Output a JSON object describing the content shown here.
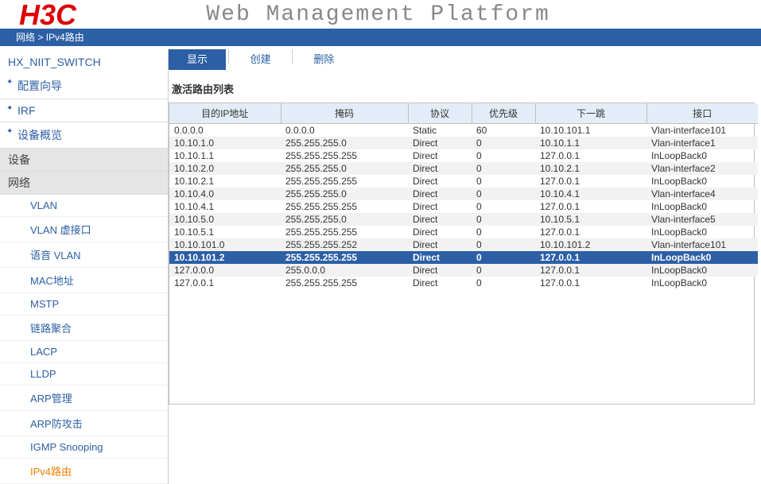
{
  "header": {
    "logo": "H3C",
    "title": "Web Management Platform"
  },
  "breadcrumb": {
    "level1": "网络",
    "sep": ">",
    "level2": "IPv4路由"
  },
  "sidebar": {
    "device_name": "HX_NIIT_SWITCH",
    "top_items": [
      {
        "label": "配置向导"
      },
      {
        "label": "IRF"
      },
      {
        "label": "设备概览"
      }
    ],
    "cat_device": "设备",
    "cat_network": "网络",
    "network_items": [
      {
        "label": "VLAN",
        "active": false
      },
      {
        "label": "VLAN 虚接口",
        "active": false
      },
      {
        "label": "语音 VLAN",
        "active": false
      },
      {
        "label": "MAC地址",
        "active": false
      },
      {
        "label": "MSTP",
        "active": false
      },
      {
        "label": "链路聚合",
        "active": false
      },
      {
        "label": "LACP",
        "active": false
      },
      {
        "label": "LLDP",
        "active": false
      },
      {
        "label": "ARP管理",
        "active": false
      },
      {
        "label": "ARP防攻击",
        "active": false
      },
      {
        "label": "IGMP Snooping",
        "active": false
      },
      {
        "label": "IPv4路由",
        "active": true
      }
    ]
  },
  "tabs": {
    "display": "显示",
    "create": "创建",
    "delete": "删除"
  },
  "table": {
    "title": "激活路由列表",
    "headers": {
      "dest": "目的IP地址",
      "mask": "掩码",
      "proto": "协议",
      "pref": "优先级",
      "nexthop": "下一跳",
      "iface": "接口"
    },
    "col_widths": {
      "dest": 140,
      "mask": 160,
      "proto": 80,
      "pref": 80,
      "nexthop": 140,
      "iface": 140
    },
    "rows": [
      {
        "dest": "0.0.0.0",
        "mask": "0.0.0.0",
        "proto": "Static",
        "pref": "60",
        "nexthop": "10.10.101.1",
        "iface": "Vlan-interface101",
        "selected": false
      },
      {
        "dest": "10.10.1.0",
        "mask": "255.255.255.0",
        "proto": "Direct",
        "pref": "0",
        "nexthop": "10.10.1.1",
        "iface": "Vlan-interface1",
        "selected": false
      },
      {
        "dest": "10.10.1.1",
        "mask": "255.255.255.255",
        "proto": "Direct",
        "pref": "0",
        "nexthop": "127.0.0.1",
        "iface": "InLoopBack0",
        "selected": false
      },
      {
        "dest": "10.10.2.0",
        "mask": "255.255.255.0",
        "proto": "Direct",
        "pref": "0",
        "nexthop": "10.10.2.1",
        "iface": "Vlan-interface2",
        "selected": false
      },
      {
        "dest": "10.10.2.1",
        "mask": "255.255.255.255",
        "proto": "Direct",
        "pref": "0",
        "nexthop": "127.0.0.1",
        "iface": "InLoopBack0",
        "selected": false
      },
      {
        "dest": "10.10.4.0",
        "mask": "255.255.255.0",
        "proto": "Direct",
        "pref": "0",
        "nexthop": "10.10.4.1",
        "iface": "Vlan-interface4",
        "selected": false
      },
      {
        "dest": "10.10.4.1",
        "mask": "255.255.255.255",
        "proto": "Direct",
        "pref": "0",
        "nexthop": "127.0.0.1",
        "iface": "InLoopBack0",
        "selected": false
      },
      {
        "dest": "10.10.5.0",
        "mask": "255.255.255.0",
        "proto": "Direct",
        "pref": "0",
        "nexthop": "10.10.5.1",
        "iface": "Vlan-interface5",
        "selected": false
      },
      {
        "dest": "10.10.5.1",
        "mask": "255.255.255.255",
        "proto": "Direct",
        "pref": "0",
        "nexthop": "127.0.0.1",
        "iface": "InLoopBack0",
        "selected": false
      },
      {
        "dest": "10.10.101.0",
        "mask": "255.255.255.252",
        "proto": "Direct",
        "pref": "0",
        "nexthop": "10.10.101.2",
        "iface": "Vlan-interface101",
        "selected": false
      },
      {
        "dest": "10.10.101.2",
        "mask": "255.255.255.255",
        "proto": "Direct",
        "pref": "0",
        "nexthop": "127.0.0.1",
        "iface": "InLoopBack0",
        "selected": true
      },
      {
        "dest": "127.0.0.0",
        "mask": "255.0.0.0",
        "proto": "Direct",
        "pref": "0",
        "nexthop": "127.0.0.1",
        "iface": "InLoopBack0",
        "selected": false
      },
      {
        "dest": "127.0.0.1",
        "mask": "255.255.255.255",
        "proto": "Direct",
        "pref": "0",
        "nexthop": "127.0.0.1",
        "iface": "InLoopBack0",
        "selected": false
      }
    ]
  }
}
